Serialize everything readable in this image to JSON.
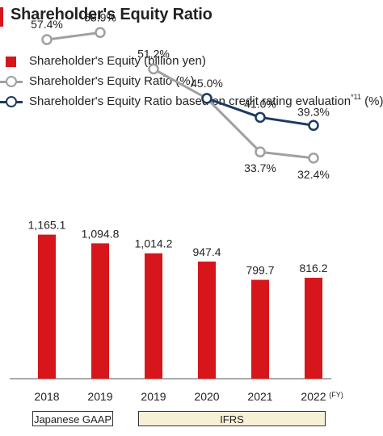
{
  "title": "Shareholder's Equity Ratio",
  "legend": {
    "equity": "Shareholder's Equity (billion yen)",
    "ratio": "Shareholder's Equity Ratio (%)",
    "rating_main": "Shareholder's Equity Ratio based on credit rating evaluation",
    "rating_sup": "*11",
    "rating_unit": " (%)"
  },
  "standards": {
    "jgaap": "Japanese GAAP",
    "ifrs": "IFRS"
  },
  "chart_data": {
    "type": "bar",
    "categories": [
      "2018",
      "2019",
      "2019",
      "2020",
      "2021",
      "2022"
    ],
    "x_unit": "(FY)",
    "series": [
      {
        "name": "Shareholder's Equity (billion yen)",
        "type": "bar",
        "values": [
          1165.1,
          1094.8,
          1014.2,
          947.4,
          799.7,
          816.2
        ],
        "labels": [
          "1,165.1",
          "1,094.8",
          "1,014.2",
          "947.4",
          "799.7",
          "816.2"
        ]
      },
      {
        "name": "Shareholder's Equity Ratio (%)",
        "type": "line",
        "values": [
          57.4,
          58.9,
          51.2,
          45.0,
          33.7,
          32.4
        ],
        "labels": [
          "57.4%",
          "58.9%",
          "51.2%",
          "45.0%",
          "33.7%",
          "32.4%"
        ],
        "segments": [
          [
            0,
            1
          ],
          [
            2,
            5
          ]
        ]
      },
      {
        "name": "Shareholder's Equity Ratio based on credit rating evaluation*11 (%)",
        "type": "line",
        "values": [
          null,
          null,
          null,
          45.0,
          41.0,
          39.3
        ],
        "labels": [
          "",
          "",
          "",
          "",
          "41.0%",
          "39.3%"
        ],
        "segments": [
          [
            3,
            5
          ]
        ]
      }
    ],
    "colors": {
      "bar": "#d7161b",
      "ratio": "#a0a0a0",
      "rating": "#1b3a64"
    }
  }
}
